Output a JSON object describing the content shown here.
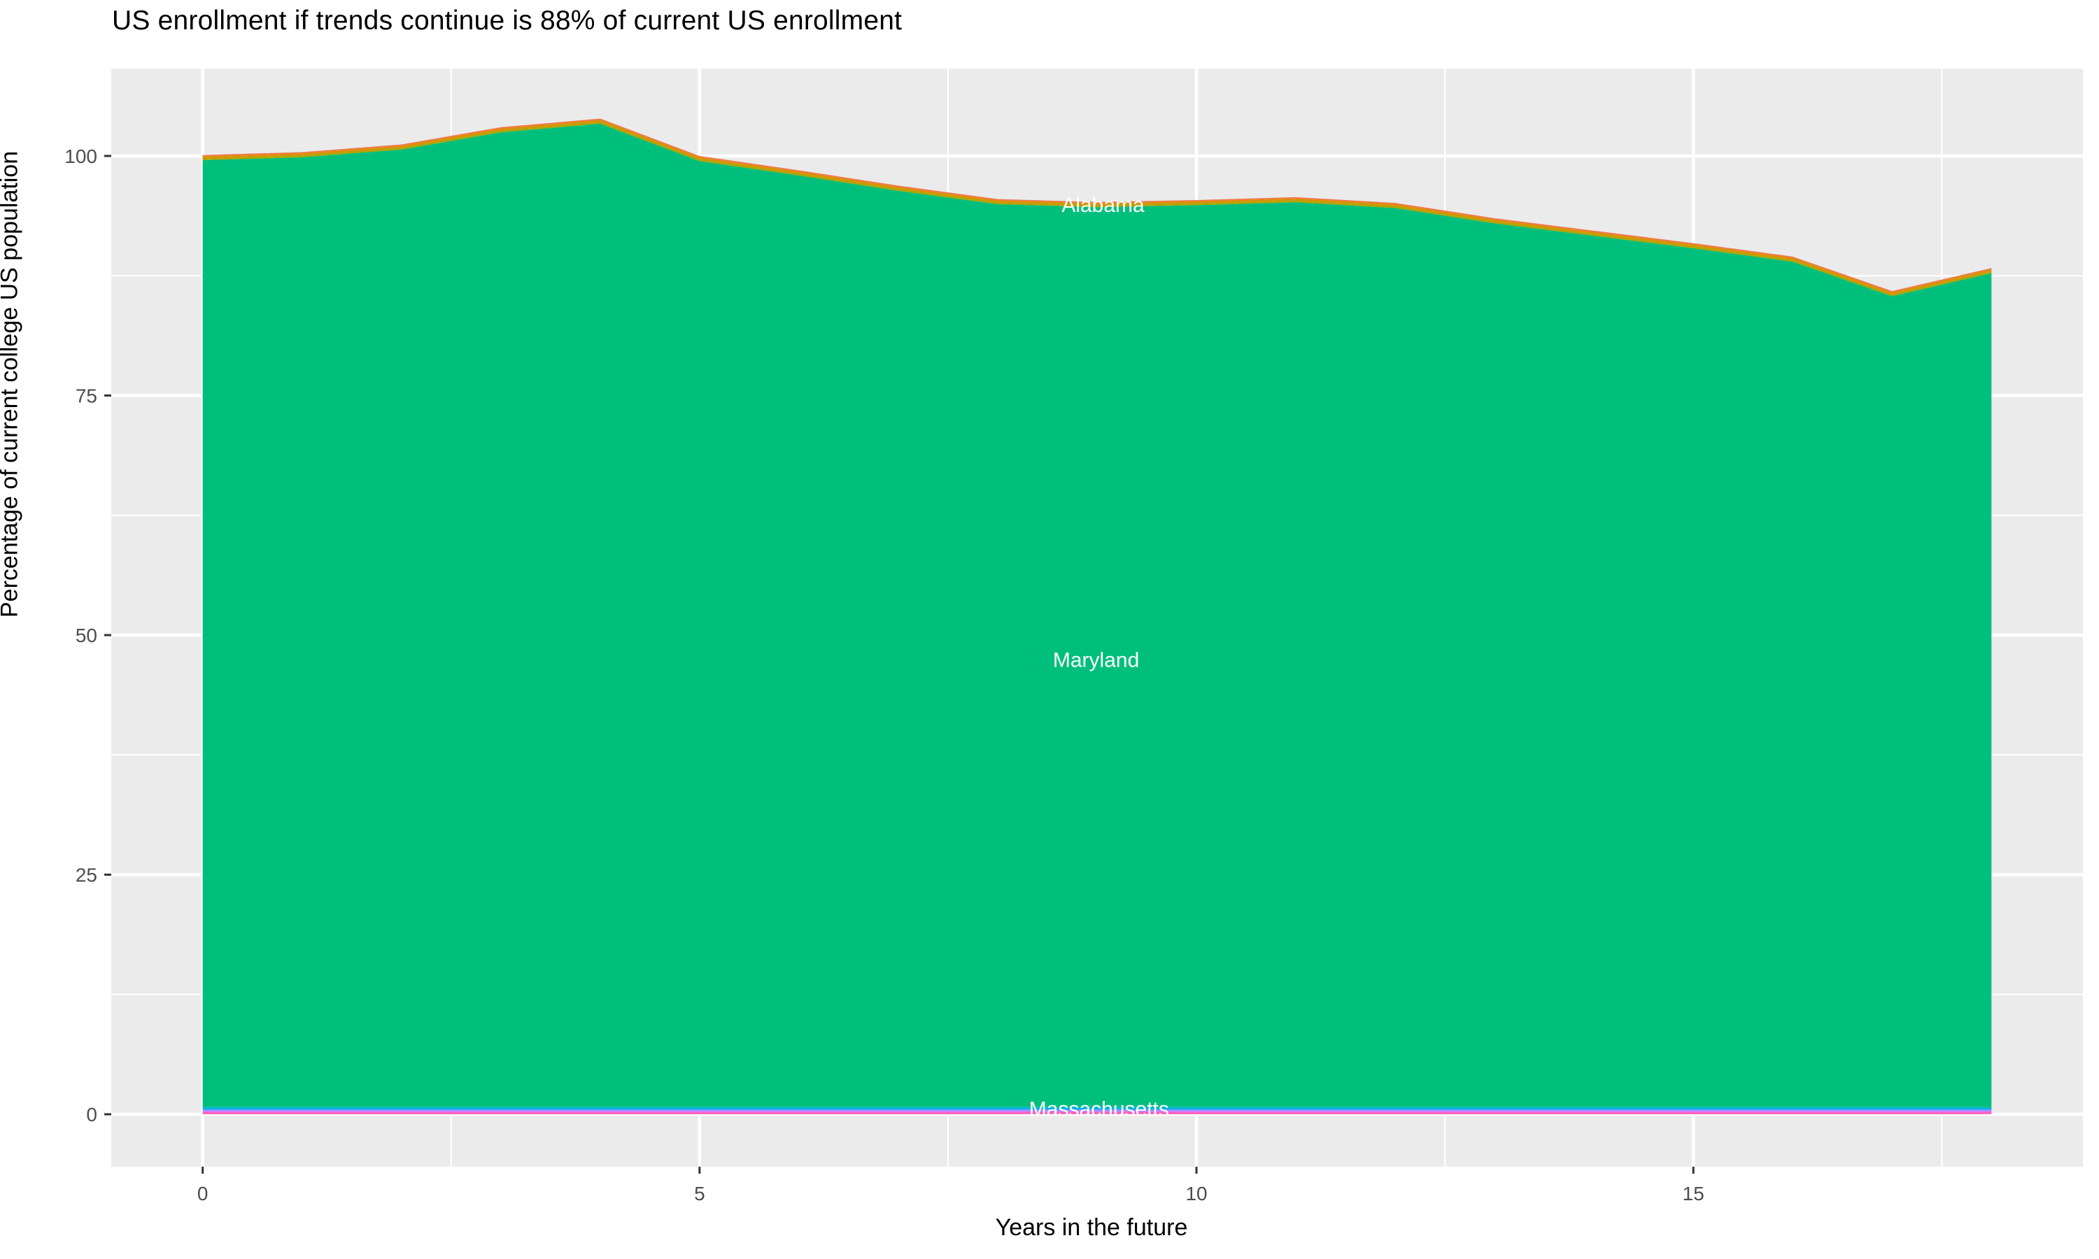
{
  "header": {
    "title": "US enrollment if trends continue is 88% of current US enrollment"
  },
  "colors": {
    "page_background": "#ffffff",
    "panel_background": "#EBEBEB",
    "gridline": "#FFFFFF",
    "tick_mark": "#333333",
    "tick_label": "#4D4D4D",
    "axis_title": "#000000",
    "area_label_text": "#FFFFFF",
    "maryland_green": "#00BF7D"
  },
  "chart_data": {
    "type": "area",
    "title": "US enrollment if trends continue is 88% of current US enrollment",
    "xlabel": "Years in the future",
    "ylabel": "Percentage of current college US population",
    "legend": "none",
    "grid": "on",
    "panel_style": "ggplot-gray",
    "axes": {
      "x": {
        "min": -0.92,
        "max": 18.92,
        "ticks": [
          0,
          5,
          10,
          15
        ],
        "minor": [
          2.5,
          7.5,
          12.5,
          17.5
        ]
      },
      "y": {
        "min": -5.47,
        "max": 109.12,
        "ticks": [
          0,
          25,
          50,
          75,
          100
        ],
        "minor": [
          12.5,
          37.5,
          62.5,
          87.5
        ]
      }
    },
    "stack": {
      "x": [
        0,
        1,
        2,
        3,
        4,
        5,
        6,
        7,
        8,
        9,
        10,
        11,
        12,
        13,
        14,
        15,
        16,
        17,
        18
      ],
      "top_edge": [
        100.1,
        100.4,
        101.2,
        103.0,
        103.9,
        100.0,
        98.5,
        96.9,
        95.5,
        95.2,
        95.4,
        95.7,
        95.1,
        93.5,
        92.2,
        90.9,
        89.5,
        85.9,
        88.3
      ],
      "upper_stripes": [
        {
          "name": "upper-stripe-salmon",
          "color": "#F0764D",
          "thickness": 0.13
        },
        {
          "name": "upper-stripe-orange",
          "color": "#E08C00",
          "thickness": 0.16
        },
        {
          "name": "upper-stripe-gold",
          "color": "#C09B00",
          "thickness": 0.14
        },
        {
          "name": "upper-stripe-olive",
          "color": "#A3A500",
          "thickness": 0.12
        }
      ],
      "main": {
        "name": "Maryland",
        "color": "#00BF7D",
        "bottom": 0.75
      },
      "lower_stripes": [
        {
          "name": "lower-stripe-teal",
          "color": "#00BFC4",
          "thickness": 0.13
        },
        {
          "name": "lower-stripe-blue",
          "color": "#00A9FF",
          "thickness": 0.13
        },
        {
          "name": "lower-stripe-periwinkle",
          "color": "#9590FF",
          "thickness": 0.15
        },
        {
          "name": "lower-stripe-violet",
          "color": "#D374FB",
          "thickness": 0.12
        },
        {
          "name": "lower-stripe-pink",
          "color": "#FF62BC",
          "thickness": 0.22
        }
      ]
    },
    "labels": [
      {
        "text": "Alabama",
        "x": 9.06,
        "y": 94.9
      },
      {
        "text": "Maryland",
        "x": 8.99,
        "y": 47.4
      },
      {
        "text": "Massachusetts",
        "x": 9.02,
        "y": 0.55
      }
    ]
  }
}
